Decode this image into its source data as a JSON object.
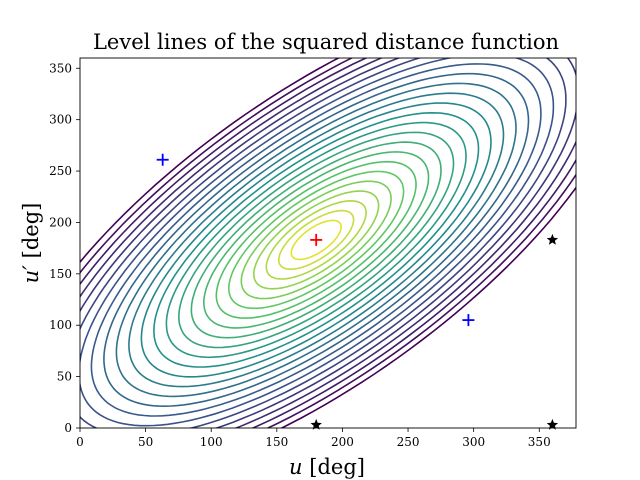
{
  "chart_data": {
    "type": "contour",
    "title": "Level lines of the squared distance function",
    "xlabel_var": "u",
    "xlabel_unit": "[deg]",
    "ylabel_var": "u′",
    "ylabel_unit": "[deg]",
    "xlim": [
      0,
      378
    ],
    "ylim": [
      0,
      360
    ],
    "xticks": [
      0,
      50,
      100,
      150,
      200,
      250,
      300,
      350
    ],
    "yticks": [
      0,
      50,
      100,
      150,
      200,
      250,
      300,
      350
    ],
    "colormap": [
      "#440154",
      "#3b528b",
      "#21918c",
      "#5ec962",
      "#fde725"
    ],
    "contour_center": [
      180,
      183
    ],
    "markers": [
      {
        "kind": "plus",
        "color": "#ff0000",
        "x": 180,
        "y": 183
      },
      {
        "kind": "plus",
        "color": "#0000ff",
        "x": 63,
        "y": 261
      },
      {
        "kind": "plus",
        "color": "#0000ff",
        "x": 296,
        "y": 105
      },
      {
        "kind": "star",
        "color": "#000000",
        "x": 180,
        "y": 3
      },
      {
        "kind": "star",
        "color": "#000000",
        "x": 360,
        "y": 183
      },
      {
        "kind": "star",
        "color": "#000000",
        "x": 360,
        "y": 3
      }
    ]
  }
}
